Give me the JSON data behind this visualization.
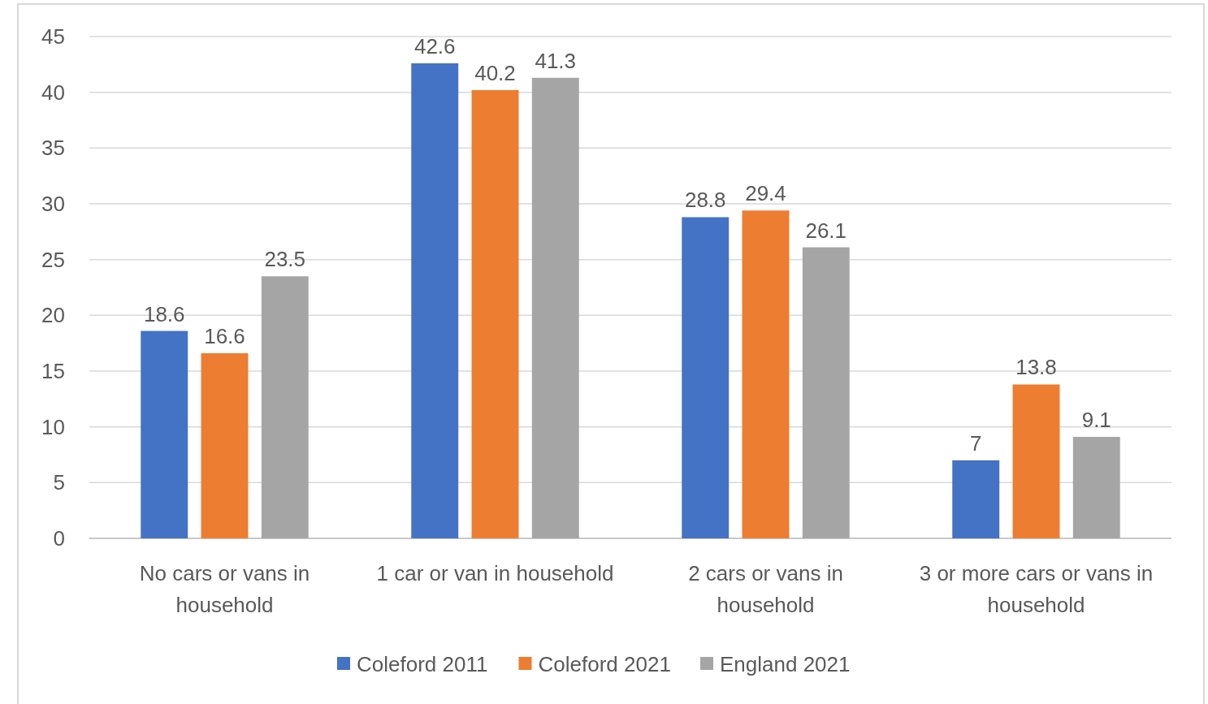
{
  "chart_data": {
    "type": "bar",
    "categories": [
      "No cars or vans in household",
      "1 car or van in household",
      "2 cars or vans in household",
      "3 or more cars or vans in household"
    ],
    "series": [
      {
        "name": "Coleford 2011",
        "color": "#4472c4",
        "values": [
          18.6,
          42.6,
          28.8,
          7
        ]
      },
      {
        "name": "Coleford 2021",
        "color": "#ed7d31",
        "values": [
          16.6,
          40.2,
          29.4,
          13.8
        ]
      },
      {
        "name": "England 2021",
        "color": "#a5a5a5",
        "values": [
          23.5,
          41.3,
          26.1,
          9.1
        ]
      }
    ],
    "ylim": [
      0,
      45
    ],
    "yticks": [
      0,
      5,
      10,
      15,
      20,
      25,
      30,
      35,
      40,
      45
    ],
    "grid": "y",
    "legend": "bottom",
    "data_labels": true
  }
}
